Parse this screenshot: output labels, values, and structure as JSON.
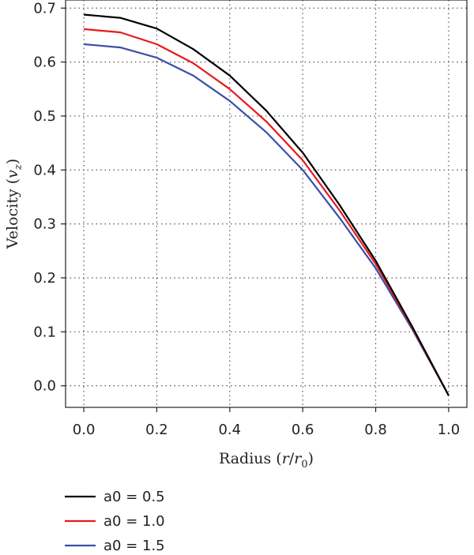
{
  "chart_data": {
    "type": "line",
    "xlabel": "Radius (r/r0)",
    "xlabel_parts": {
      "pre": "Radius (",
      "var": "r",
      "slash": "/",
      "var2": "r",
      "sub": "0",
      "post": ")"
    },
    "ylabel": "Velocity (vz)",
    "ylabel_parts": {
      "pre": "Velocity (",
      "var": "v",
      "sub": "z",
      "post": ")"
    },
    "xlim": [
      -0.05,
      1.05
    ],
    "ylim": [
      -0.04,
      0.715
    ],
    "xticks": [
      "0.0",
      "0.2",
      "0.4",
      "0.6",
      "0.8",
      "1.0"
    ],
    "xtick_values": [
      0.0,
      0.2,
      0.4,
      0.6,
      0.8,
      1.0
    ],
    "yticks": [
      "0.0",
      "0.1",
      "0.2",
      "0.3",
      "0.4",
      "0.5",
      "0.6",
      "0.7"
    ],
    "ytick_values": [
      0.0,
      0.1,
      0.2,
      0.3,
      0.4,
      0.5,
      0.6,
      0.7
    ],
    "grid": true,
    "legend_position": "bottom-left, below plot",
    "x": [
      0.0,
      0.1,
      0.2,
      0.3,
      0.4,
      0.5,
      0.6,
      0.7,
      0.8,
      0.9,
      1.0
    ],
    "series": [
      {
        "name": "a0 = 0.5",
        "color": "#000000",
        "values": [
          0.688,
          0.682,
          0.662,
          0.624,
          0.575,
          0.51,
          0.432,
          0.336,
          0.232,
          0.11,
          -0.018
        ]
      },
      {
        "name": "a0 = 1.0",
        "color": "#e8191c",
        "values": [
          0.661,
          0.655,
          0.633,
          0.598,
          0.55,
          0.49,
          0.418,
          0.326,
          0.226,
          0.108,
          -0.018
        ]
      },
      {
        "name": "a0 = 1.5",
        "color": "#3a4fa8",
        "values": [
          0.633,
          0.627,
          0.608,
          0.575,
          0.528,
          0.47,
          0.4,
          0.312,
          0.218,
          0.105,
          -0.018
        ]
      }
    ]
  }
}
